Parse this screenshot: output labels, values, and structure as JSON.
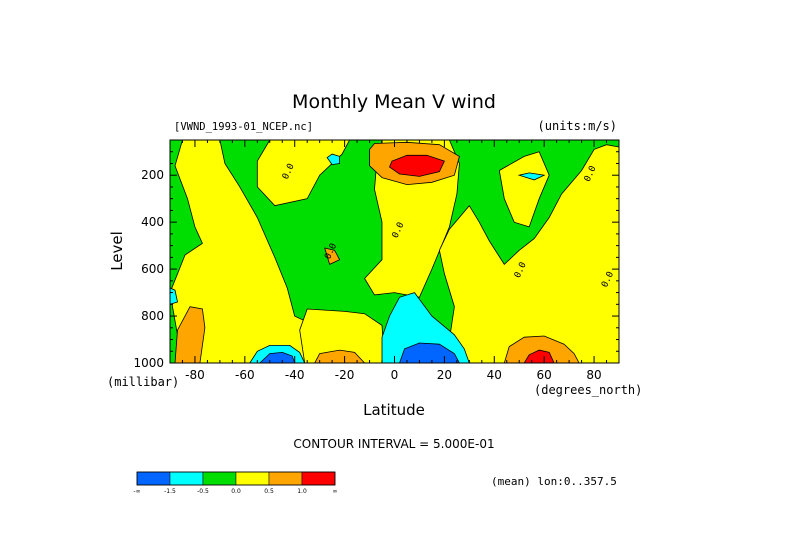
{
  "chart_data": {
    "type": "heatmap",
    "title": "Monthly Mean V wind",
    "dataset_label": "[VWND_1993-01_NCEP.nc]",
    "units_label": "(units:m/s)",
    "xlabel": "Latitude",
    "x_units": "(degrees_north)",
    "ylabel": "Level",
    "y_units": "(millibar)",
    "xlim": [
      -90,
      90
    ],
    "ylim": [
      1000,
      50
    ],
    "x_ticks": [
      -80,
      -60,
      -40,
      -20,
      0,
      20,
      40,
      60,
      80
    ],
    "x_tick_labels": [
      "-80",
      "-60",
      "-40",
      "-20",
      "0",
      "20",
      "40",
      "60",
      "80"
    ],
    "y_ticks": [
      200,
      400,
      600,
      800,
      1000
    ],
    "y_tick_labels": [
      "200",
      "400",
      "600",
      "800",
      "1000"
    ],
    "contour_interval_text": "CONTOUR INTERVAL = 5.000E-01",
    "mean_note": "(mean) lon:0..357.5",
    "colorbar": {
      "colors": [
        "#0066ff",
        "#00ffff",
        "#00dd00",
        "#ffff00",
        "#ffa500",
        "#ff0000"
      ],
      "labels": [
        "-∞",
        "-1.5",
        "-0.5",
        "0.0",
        "0.5",
        "1.0",
        "∞"
      ]
    },
    "contour_labels": [
      {
        "text": "0.0",
        "lat": -43,
        "level": 220
      },
      {
        "text": "0.0",
        "lat": -26,
        "level": 560
      },
      {
        "text": "0.0",
        "lat": 1,
        "level": 470
      },
      {
        "text": "0.0",
        "lat": 50,
        "level": 640
      },
      {
        "text": "0.0",
        "lat": 78,
        "level": 230
      },
      {
        "text": "0.0",
        "lat": 85,
        "level": 680
      }
    ],
    "regions": [
      {
        "class": "-0.5..0.0",
        "color": "#00dd00",
        "pts": [
          [
            -90,
            50
          ],
          [
            90,
            50
          ],
          [
            90,
            1000
          ],
          [
            -90,
            1000
          ]
        ]
      },
      {
        "class": "0.0..0.5",
        "color": "#ffff00",
        "pts": [
          [
            -85,
            50
          ],
          [
            -70,
            50
          ],
          [
            -68,
            150
          ],
          [
            -62,
            250
          ],
          [
            -55,
            380
          ],
          [
            -48,
            550
          ],
          [
            -43,
            680
          ],
          [
            -40,
            800
          ],
          [
            -30,
            850
          ],
          [
            -20,
            920
          ],
          [
            -15,
            1000
          ],
          [
            -85,
            1000
          ],
          [
            -88,
            820
          ],
          [
            -90,
            700
          ],
          [
            -84,
            540
          ],
          [
            -77,
            490
          ],
          [
            -80,
            420
          ],
          [
            -83,
            300
          ],
          [
            -88,
            160
          ]
        ]
      },
      {
        "class": "0.0..0.5",
        "color": "#ffff00",
        "pts": [
          [
            -50,
            50
          ],
          [
            -18,
            50
          ],
          [
            -21,
            110
          ],
          [
            -30,
            200
          ],
          [
            -35,
            300
          ],
          [
            -48,
            330
          ],
          [
            -55,
            250
          ],
          [
            -55,
            140
          ]
        ]
      },
      {
        "class": "0.0..0.5",
        "color": "#ffff00",
        "pts": [
          [
            -5,
            50
          ],
          [
            22,
            50
          ],
          [
            26,
            150
          ],
          [
            25,
            280
          ],
          [
            22,
            420
          ],
          [
            15,
            600
          ],
          [
            10,
            720
          ],
          [
            0,
            700
          ],
          [
            -8,
            710
          ],
          [
            -12,
            640
          ],
          [
            -5,
            560
          ],
          [
            -5,
            400
          ],
          [
            -8,
            260
          ],
          [
            -7,
            130
          ]
        ]
      },
      {
        "class": "0.0..0.5",
        "color": "#ffff00",
        "pts": [
          [
            -35,
            770
          ],
          [
            -20,
            780
          ],
          [
            -12,
            790
          ],
          [
            -5,
            840
          ],
          [
            -4,
            1000
          ],
          [
            -36,
            1000
          ],
          [
            -38,
            860
          ]
        ]
      },
      {
        "class": "0.0..0.5",
        "color": "#ffff00",
        "pts": [
          [
            22,
            430
          ],
          [
            30,
            330
          ],
          [
            34,
            400
          ],
          [
            38,
            480
          ],
          [
            44,
            580
          ],
          [
            50,
            520
          ],
          [
            56,
            470
          ],
          [
            62,
            380
          ],
          [
            67,
            280
          ],
          [
            75,
            180
          ],
          [
            80,
            90
          ],
          [
            85,
            70
          ],
          [
            90,
            80
          ],
          [
            90,
            1000
          ],
          [
            24,
            1000
          ],
          [
            22,
            900
          ],
          [
            24,
            760
          ],
          [
            20,
            620
          ],
          [
            18,
            520
          ]
        ]
      },
      {
        "class": "0.0..0.5",
        "color": "#ffff00",
        "pts": [
          [
            42,
            180
          ],
          [
            52,
            120
          ],
          [
            58,
            100
          ],
          [
            62,
            200
          ],
          [
            58,
            300
          ],
          [
            54,
            420
          ],
          [
            48,
            400
          ],
          [
            44,
            300
          ]
        ]
      },
      {
        "class": "0.5..1.0",
        "color": "#ffa500",
        "pts": [
          [
            -10,
            90
          ],
          [
            -8,
            65
          ],
          [
            5,
            60
          ],
          [
            18,
            70
          ],
          [
            26,
            120
          ],
          [
            24,
            200
          ],
          [
            15,
            230
          ],
          [
            5,
            240
          ],
          [
            -5,
            210
          ],
          [
            -10,
            160
          ]
        ]
      },
      {
        "class": "0.5..1.0",
        "color": "#ffa500",
        "pts": [
          [
            -88,
            1000
          ],
          [
            -87,
            860
          ],
          [
            -82,
            760
          ],
          [
            -77,
            770
          ],
          [
            -76,
            850
          ],
          [
            -78,
            1000
          ]
        ]
      },
      {
        "class": "0.5..1.0",
        "color": "#ffa500",
        "pts": [
          [
            -32,
            1000
          ],
          [
            -30,
            960
          ],
          [
            -22,
            945
          ],
          [
            -16,
            955
          ],
          [
            -12,
            1000
          ]
        ]
      },
      {
        "class": "0.5..1.0",
        "color": "#ffa500",
        "pts": [
          [
            44,
            1000
          ],
          [
            46,
            930
          ],
          [
            52,
            890
          ],
          [
            60,
            885
          ],
          [
            68,
            920
          ],
          [
            72,
            960
          ],
          [
            74,
            1000
          ]
        ]
      },
      {
        "class": "0.5..1.0",
        "color": "#ffa500",
        "pts": [
          [
            -28,
            510
          ],
          [
            -24,
            520
          ],
          [
            -22,
            560
          ],
          [
            -26,
            580
          ]
        ]
      },
      {
        "class": ">1.0",
        "color": "#ff0000",
        "pts": [
          [
            -1,
            140
          ],
          [
            5,
            115
          ],
          [
            13,
            115
          ],
          [
            20,
            140
          ],
          [
            18,
            185
          ],
          [
            10,
            205
          ],
          [
            2,
            195
          ],
          [
            -2,
            165
          ]
        ]
      },
      {
        "class": ">1.0",
        "color": "#ff0000",
        "pts": [
          [
            52,
            1000
          ],
          [
            54,
            965
          ],
          [
            58,
            945
          ],
          [
            62,
            955
          ],
          [
            64,
            1000
          ]
        ]
      },
      {
        "class": "-1.5..-0.5",
        "color": "#00ffff",
        "pts": [
          [
            -5,
            890
          ],
          [
            -2,
            800
          ],
          [
            2,
            720
          ],
          [
            8,
            700
          ],
          [
            15,
            800
          ],
          [
            24,
            880
          ],
          [
            28,
            940
          ],
          [
            30,
            1000
          ],
          [
            -5,
            1000
          ]
        ]
      },
      {
        "class": "-1.5..-0.5",
        "color": "#00ffff",
        "pts": [
          [
            -58,
            1000
          ],
          [
            -55,
            950
          ],
          [
            -50,
            925
          ],
          [
            -42,
            925
          ],
          [
            -38,
            955
          ],
          [
            -36,
            1000
          ]
        ]
      },
      {
        "class": "-1.5..-0.5",
        "color": "#00ffff",
        "pts": [
          [
            -27,
            125
          ],
          [
            -25,
            110
          ],
          [
            -22,
            120
          ],
          [
            -22,
            150
          ],
          [
            -25,
            155
          ]
        ]
      },
      {
        "class": "-1.5..-0.5",
        "color": "#00ffff",
        "pts": [
          [
            50,
            200
          ],
          [
            54,
            190
          ],
          [
            60,
            200
          ],
          [
            56,
            220
          ]
        ]
      },
      {
        "class": "-1.5..-0.5",
        "color": "#00ffff",
        "pts": [
          [
            -90,
            680
          ],
          [
            -88,
            690
          ],
          [
            -87,
            740
          ],
          [
            -90,
            750
          ]
        ]
      },
      {
        "class": "<-1.5",
        "color": "#0066ff",
        "pts": [
          [
            2,
            1000
          ],
          [
            4,
            940
          ],
          [
            10,
            915
          ],
          [
            18,
            920
          ],
          [
            24,
            960
          ],
          [
            26,
            1000
          ]
        ]
      },
      {
        "class": "<-1.5",
        "color": "#0066ff",
        "pts": [
          [
            -54,
            1000
          ],
          [
            -50,
            960
          ],
          [
            -45,
            955
          ],
          [
            -41,
            970
          ],
          [
            -40,
            1000
          ]
        ]
      }
    ]
  }
}
